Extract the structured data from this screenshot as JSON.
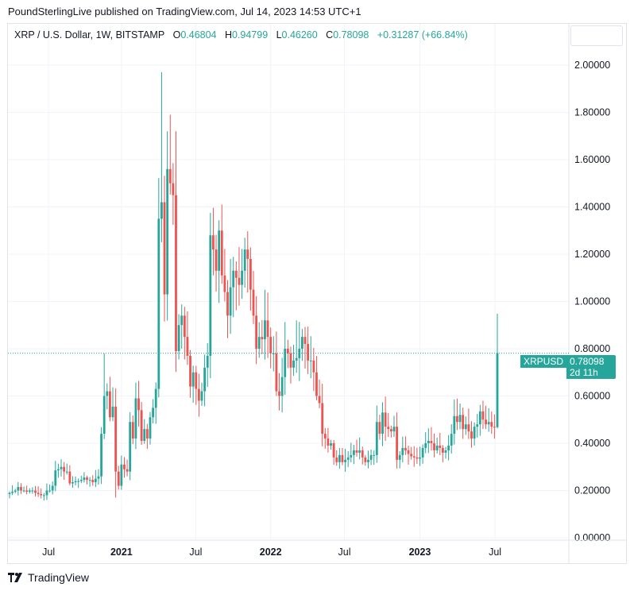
{
  "published": "PoundSterlingLive published on TradingView.com, Jul 14, 2023 14:53 UTC+1",
  "legend": {
    "symbol": "XRP / U.S. Dollar, 1W, BITSTAMP",
    "o_label": "O",
    "o": "0.46804",
    "h_label": "H",
    "h": "0.94799",
    "l_label": "L",
    "l": "0.46260",
    "c_label": "C",
    "c": "0.78098",
    "change": "+0.31287 (+66.84%)"
  },
  "last_price": {
    "symbol": "XRPUSD",
    "price": "0.78098",
    "countdown": "2d 11h",
    "value": 0.78098
  },
  "footer": {
    "brand": "TradingView"
  },
  "colors": {
    "up": "#26a69a",
    "down": "#ef5350",
    "grid": "#f0f3fa"
  },
  "chart_data": {
    "type": "candlestick",
    "title": "XRP / U.S. Dollar, 1W, BITSTAMP",
    "ylim": [
      0,
      2.0
    ],
    "y_ticks": [
      "2.00000",
      "1.80000",
      "1.60000",
      "1.40000",
      "1.20000",
      "1.00000",
      "0.80000",
      "0.60000",
      "0.40000",
      "0.20000",
      "0.00000"
    ],
    "x_ticks": [
      {
        "label": "Jul",
        "bold": false,
        "index": 13.6
      },
      {
        "label": "2021",
        "bold": true,
        "index": 39
      },
      {
        "label": "Jul",
        "bold": false,
        "index": 64.9
      },
      {
        "label": "2022",
        "bold": true,
        "index": 91
      },
      {
        "label": "Jul",
        "bold": false,
        "index": 116.7
      },
      {
        "label": "2023",
        "bold": true,
        "index": 143
      },
      {
        "label": "Jul",
        "bold": false,
        "index": 169.2
      }
    ],
    "first_open": 0.185,
    "closes": [
      0.19,
      0.195,
      0.2,
      0.215,
      0.2,
      0.2,
      0.195,
      0.2,
      0.2,
      0.19,
      0.185,
      0.18,
      0.18,
      0.2,
      0.2,
      0.22,
      0.285,
      0.29,
      0.3,
      0.28,
      0.28,
      0.23,
      0.235,
      0.24,
      0.24,
      0.245,
      0.255,
      0.245,
      0.245,
      0.235,
      0.25,
      0.26,
      0.44,
      0.6,
      0.62,
      0.51,
      0.555,
      0.28,
      0.22,
      0.31,
      0.29,
      0.28,
      0.49,
      0.42,
      0.59,
      0.54,
      0.41,
      0.46,
      0.42,
      0.51,
      0.55,
      0.63,
      1.35,
      1.42,
      1.03,
      1.56,
      1.5,
      1.45,
      0.79,
      0.9,
      0.94,
      0.85,
      0.77,
      0.64,
      0.7,
      0.63,
      0.58,
      0.62,
      0.72,
      0.77,
      1.28,
      1.22,
      1.13,
      1.3,
      1.11,
      1.04,
      0.94,
      1.06,
      1.13,
      1.1,
      1.07,
      1.13,
      1.22,
      1.18,
      1.05,
      0.94,
      0.8,
      0.85,
      0.84,
      0.92,
      0.85,
      0.78,
      0.78,
      0.62,
      0.6,
      0.68,
      0.8,
      0.78,
      0.72,
      0.75,
      0.76,
      0.8,
      0.85,
      0.82,
      0.75,
      0.75,
      0.7,
      0.6,
      0.57,
      0.44,
      0.42,
      0.39,
      0.4,
      0.34,
      0.32,
      0.35,
      0.32,
      0.33,
      0.34,
      0.35,
      0.37,
      0.36,
      0.37,
      0.34,
      0.32,
      0.33,
      0.35,
      0.35,
      0.49,
      0.44,
      0.53,
      0.47,
      0.46,
      0.45,
      0.47,
      0.33,
      0.35,
      0.38,
      0.37,
      0.355,
      0.345,
      0.34,
      0.335,
      0.34,
      0.38,
      0.4,
      0.41,
      0.4,
      0.37,
      0.39,
      0.38,
      0.36,
      0.37,
      0.39,
      0.44,
      0.515,
      0.49,
      0.52,
      0.46,
      0.48,
      0.45,
      0.42,
      0.47,
      0.48,
      0.535,
      0.5,
      0.48,
      0.49,
      0.47,
      0.468,
      0.78098
    ],
    "wick_overrides": [
      {
        "i": 33,
        "h": 0.78
      },
      {
        "i": 37,
        "l": 0.17
      },
      {
        "i": 53,
        "h": 1.97
      },
      {
        "i": 55,
        "h": 1.72
      },
      {
        "i": 56,
        "h": 1.79
      },
      {
        "i": 58,
        "h": 1.72
      },
      {
        "i": 74,
        "h": 1.41
      },
      {
        "i": 100,
        "h": 0.92
      },
      {
        "i": 170,
        "o": 0.46804,
        "h": 0.94799,
        "l": 0.4626
      }
    ]
  }
}
